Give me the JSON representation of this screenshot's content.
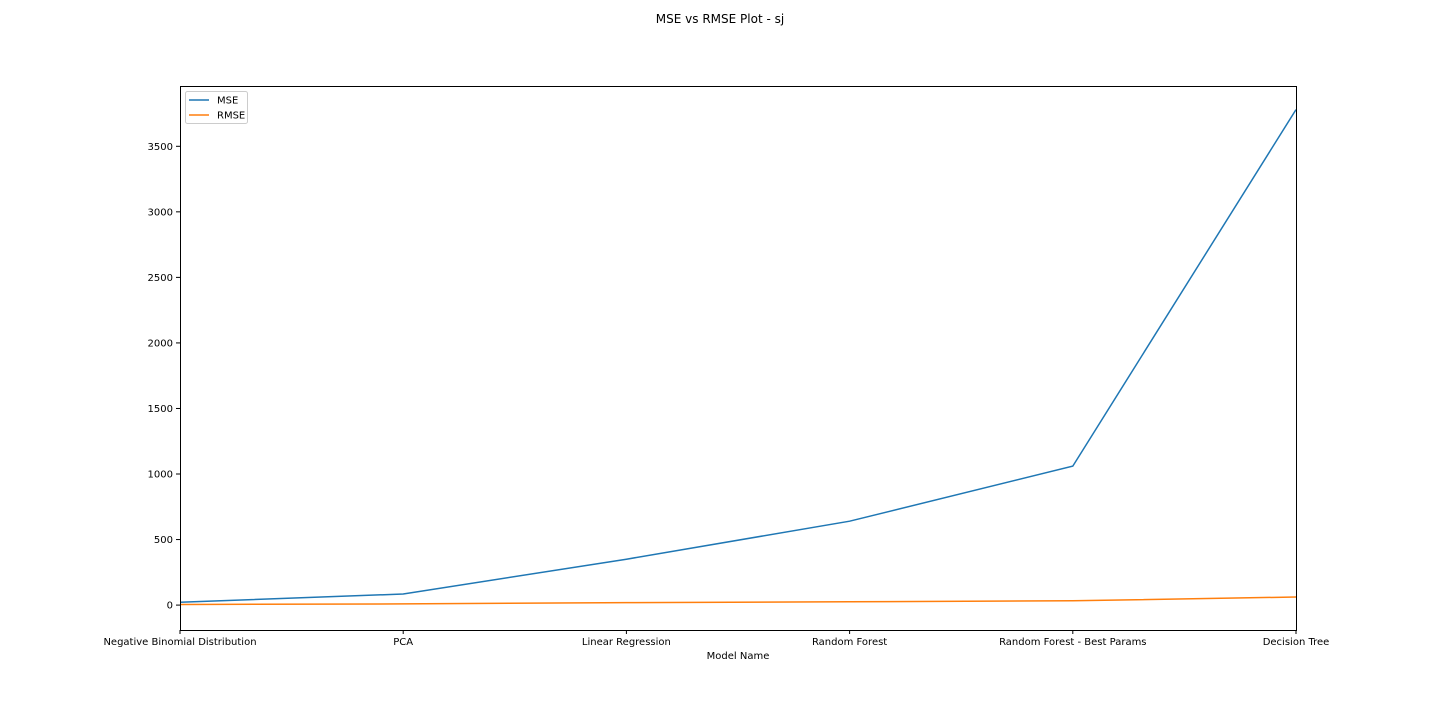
{
  "chart_data": {
    "type": "line",
    "title": "MSE vs RMSE Plot - sj",
    "xlabel": "Model Name",
    "ylabel": "",
    "categories": [
      "Negative Binomial Distribution",
      "PCA",
      "Linear Regression",
      "Random Forest",
      "Random Forest - Best Params",
      "Decision Tree"
    ],
    "series": [
      {
        "name": "MSE",
        "color": "#1f77b4",
        "values": [
          22,
          85,
          350,
          640,
          1060,
          3780
        ]
      },
      {
        "name": "RMSE",
        "color": "#ff7f0e",
        "values": [
          4.7,
          9.2,
          18.7,
          25.3,
          32.6,
          61.5
        ]
      }
    ],
    "ylim": [
      -190,
      3960
    ],
    "yticks": [
      0,
      500,
      1000,
      1500,
      2000,
      2500,
      3000,
      3500
    ],
    "legend": "top-left",
    "grid": false
  }
}
